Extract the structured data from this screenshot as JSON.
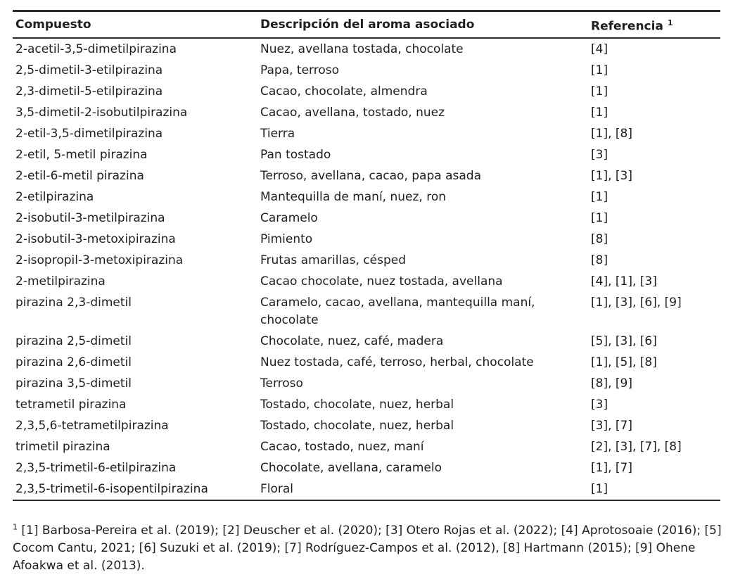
{
  "colors": {
    "text": "#1f1f1f",
    "rule": "#2b2b2b",
    "background": "#ffffff"
  },
  "table": {
    "headers": {
      "compuesto": "Compuesto",
      "descripcion": "Descripción del aroma asociado",
      "referencia": "Referencia",
      "referencia_sup": "1"
    },
    "rows": [
      {
        "compuesto": "2-acetil-3,5-dimetilpirazina",
        "descripcion": "Nuez, avellana tostada, chocolate",
        "referencia": "[4]"
      },
      {
        "compuesto": "2,5-dimetil-3-etilpirazina",
        "descripcion": "Papa, terroso",
        "referencia": "[1]"
      },
      {
        "compuesto": "2,3-dimetil-5-etilpirazina",
        "descripcion": "Cacao, chocolate, almendra",
        "referencia": "[1]"
      },
      {
        "compuesto": "3,5-dimetil-2-isobutilpirazina",
        "descripcion": "Cacao, avellana, tostado, nuez",
        "referencia": "[1]"
      },
      {
        "compuesto": "2-etil-3,5-dimetilpirazina",
        "descripcion": "Tierra",
        "referencia": "[1], [8]"
      },
      {
        "compuesto": "2-etil, 5-metil pirazina",
        "descripcion": "Pan tostado",
        "referencia": "[3]"
      },
      {
        "compuesto": "2-etil-6-metil pirazina",
        "descripcion": "Terroso, avellana, cacao, papa asada",
        "referencia": "[1], [3]"
      },
      {
        "compuesto": "2-etilpirazina",
        "descripcion": "Mantequilla de maní, nuez, ron",
        "referencia": "[1]"
      },
      {
        "compuesto": "2-isobutil-3-metilpirazina",
        "descripcion": "Caramelo",
        "referencia": "[1]"
      },
      {
        "compuesto": "2-isobutil-3-metoxipirazina",
        "descripcion": "Pimiento",
        "referencia": "[8]"
      },
      {
        "compuesto": "2-isopropil-3-metoxipirazina",
        "descripcion": "Frutas amarillas, césped",
        "referencia": "[8]"
      },
      {
        "compuesto": "2-metilpirazina",
        "descripcion": "Cacao chocolate, nuez tostada, avellana",
        "referencia": "[4], [1], [3]"
      },
      {
        "compuesto": "pirazina 2,3-dimetil",
        "descripcion": "Caramelo, cacao, avellana, mantequilla maní, chocolate",
        "referencia": "[1], [3], [6], [9]"
      },
      {
        "compuesto": "pirazina 2,5-dimetil",
        "descripcion": "Chocolate, nuez, café, madera",
        "referencia": "[5], [3], [6]"
      },
      {
        "compuesto": "pirazina 2,6-dimetil",
        "descripcion": "Nuez tostada, café, terroso, herbal, chocolate",
        "referencia": "[1], [5], [8]"
      },
      {
        "compuesto": "pirazina 3,5-dimetil",
        "descripcion": "Terroso",
        "referencia": "[8], [9]"
      },
      {
        "compuesto": "tetrametil pirazina",
        "descripcion": "Tostado, chocolate, nuez, herbal",
        "referencia": "[3]"
      },
      {
        "compuesto": "2,3,5,6-tetrametilpirazina",
        "descripcion": "Tostado, chocolate, nuez, herbal",
        "referencia": "[3], [7]"
      },
      {
        "compuesto": "trimetil pirazina",
        "descripcion": "Cacao, tostado, nuez, maní",
        "referencia": "[2], [3], [7], [8]"
      },
      {
        "compuesto": "2,3,5-trimetil-6-etilpirazina",
        "descripcion": "Chocolate, avellana, caramelo",
        "referencia": "[1], [7]"
      },
      {
        "compuesto": "2,3,5-trimetil-6-isopentilpirazina",
        "descripcion": "Floral",
        "referencia": "[1]"
      }
    ]
  },
  "footnote": {
    "marker": "1",
    "text": "[1] Barbosa-Pereira et al. (2019); [2] Deuscher et al. (2020); [3] Otero Rojas et al. (2022); [4] Aprotosoaie (2016); [5] Cocom Cantu, 2021; [6] Suzuki et al. (2019); [7] Rodríguez-Campos et al. (2012), [8] Hartmann (2015); [9] Ohene Afoakwa et al. (2013)."
  }
}
